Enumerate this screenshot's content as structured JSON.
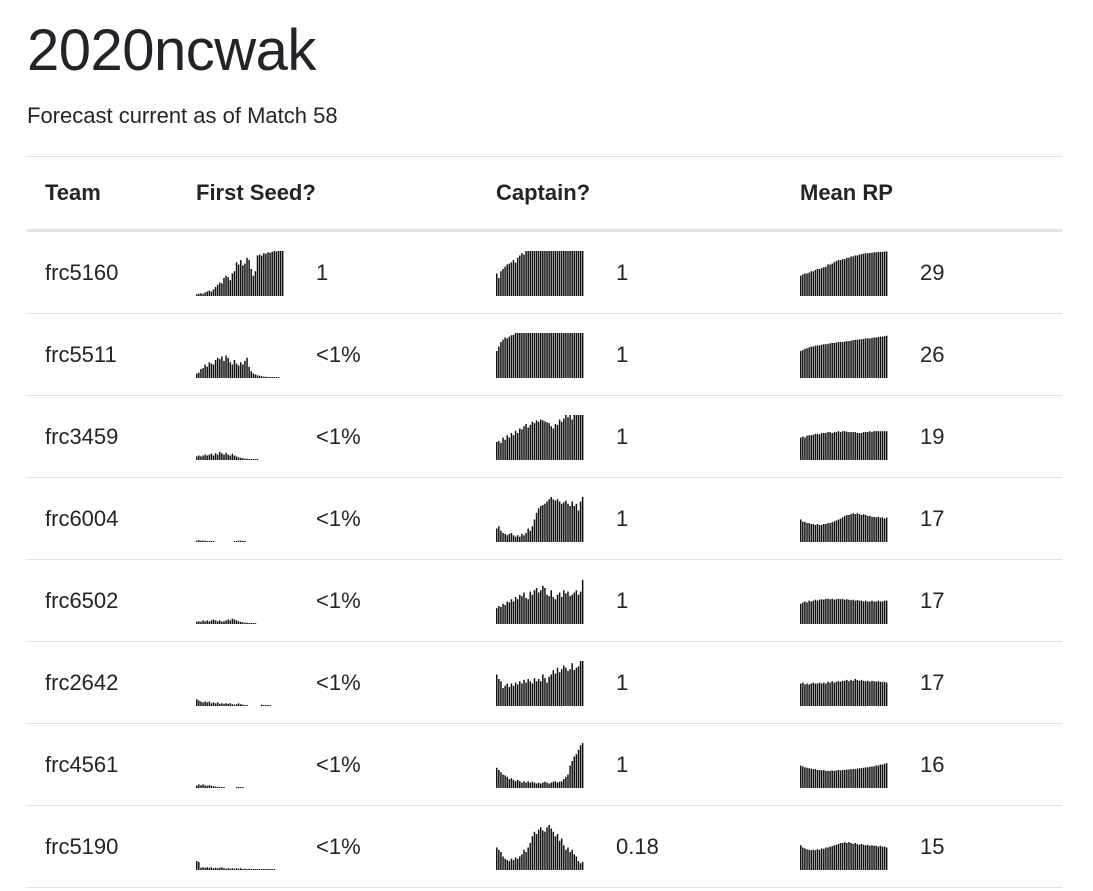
{
  "page": {
    "title": "2020ncwak",
    "subtitle": "Forecast current as of Match 58"
  },
  "table": {
    "headers": {
      "team": "Team",
      "first_seed": "First Seed?",
      "captain": "Captain?",
      "mean_rp": "Mean RP"
    },
    "rows": [
      {
        "team": "frc5160",
        "first_seed": "1",
        "captain": "1",
        "mean_rp": "29",
        "first_seed_spark": [
          0.04,
          0.05,
          0.06,
          0.05,
          0.08,
          0.1,
          0.12,
          0.1,
          0.15,
          0.2,
          0.25,
          0.3,
          0.28,
          0.4,
          0.45,
          0.42,
          0.35,
          0.5,
          0.55,
          0.75,
          0.7,
          0.8,
          0.68,
          0.72,
          0.85,
          0.8,
          0.6,
          0.45,
          0.55,
          0.9,
          0.92,
          0.9,
          0.95,
          0.94,
          0.97,
          0.96,
          0.98,
          1,
          0.99,
          1,
          1,
          1
        ],
        "captain_spark": [
          0.5,
          0.4,
          0.55,
          0.6,
          0.65,
          0.7,
          0.72,
          0.75,
          0.8,
          0.74,
          0.85,
          0.9,
          0.95,
          0.92,
          1,
          1,
          1,
          1,
          1,
          1,
          1,
          1,
          1,
          1,
          1,
          1,
          1,
          1,
          1,
          1,
          1,
          1,
          1,
          1,
          1,
          1,
          1,
          1,
          1,
          1,
          1,
          1
        ],
        "mean_rp_spark": [
          0.45,
          0.48,
          0.5,
          0.5,
          0.52,
          0.55,
          0.55,
          0.58,
          0.6,
          0.6,
          0.62,
          0.64,
          0.65,
          0.7,
          0.7,
          0.72,
          0.75,
          0.78,
          0.8,
          0.8,
          0.82,
          0.82,
          0.85,
          0.85,
          0.88,
          0.88,
          0.9,
          0.9,
          0.92,
          0.93,
          0.94,
          0.95,
          0.95,
          0.96,
          0.96,
          0.97,
          0.97,
          0.98,
          0.98,
          0.98,
          0.99,
          0.99
        ]
      },
      {
        "team": "frc5511",
        "first_seed": "<1%",
        "captain": "1",
        "mean_rp": "26",
        "first_seed_spark": [
          0.1,
          0.12,
          0.2,
          0.22,
          0.3,
          0.25,
          0.35,
          0.32,
          0.3,
          0.4,
          0.45,
          0.42,
          0.48,
          0.38,
          0.5,
          0.45,
          0.35,
          0.3,
          0.4,
          0.32,
          0.28,
          0.35,
          0.3,
          0.38,
          0.45,
          0.25,
          0.15,
          0.1,
          0.08,
          0.06,
          0.05,
          0.04,
          0.03,
          0.03,
          0.02,
          0.02,
          0.02,
          0.02,
          0.01,
          0.01
        ],
        "captain_spark": [
          0.6,
          0.7,
          0.8,
          0.85,
          0.9,
          0.88,
          0.92,
          0.95,
          0.96,
          1,
          1,
          1,
          1,
          1,
          1,
          1,
          1,
          1,
          1,
          1,
          1,
          1,
          1,
          1,
          1,
          1,
          1,
          1,
          1,
          1,
          1,
          1,
          1,
          1,
          1,
          1,
          1,
          1,
          1,
          1,
          1,
          1
        ],
        "mean_rp_spark": [
          0.6,
          0.62,
          0.65,
          0.66,
          0.68,
          0.7,
          0.7,
          0.72,
          0.72,
          0.73,
          0.74,
          0.75,
          0.75,
          0.76,
          0.77,
          0.78,
          0.78,
          0.79,
          0.8,
          0.8,
          0.8,
          0.81,
          0.82,
          0.82,
          0.83,
          0.84,
          0.85,
          0.85,
          0.86,
          0.86,
          0.87,
          0.88,
          0.88,
          0.88,
          0.89,
          0.9,
          0.9,
          0.91,
          0.92,
          0.92,
          0.93,
          0.94
        ]
      },
      {
        "team": "frc3459",
        "first_seed": "<1%",
        "captain": "1",
        "mean_rp": "19",
        "first_seed_spark": [
          0.08,
          0.1,
          0.08,
          0.1,
          0.12,
          0.1,
          0.12,
          0.14,
          0.1,
          0.15,
          0.12,
          0.18,
          0.15,
          0.12,
          0.16,
          0.12,
          0.1,
          0.14,
          0.1,
          0.08,
          0.06,
          0.05,
          0.04,
          0.03,
          0.03,
          0.02,
          0.02,
          0.02,
          0.01,
          0.01
        ],
        "captain_spark": [
          0.4,
          0.42,
          0.38,
          0.5,
          0.45,
          0.55,
          0.5,
          0.6,
          0.55,
          0.65,
          0.6,
          0.7,
          0.68,
          0.75,
          0.8,
          0.72,
          0.78,
          0.85,
          0.82,
          0.88,
          0.85,
          0.9,
          0.88,
          0.86,
          0.84,
          0.82,
          0.75,
          0.7,
          0.8,
          0.78,
          0.9,
          0.85,
          0.92,
          1,
          0.95,
          1,
          0.9,
          1,
          1,
          1,
          1,
          1
        ],
        "mean_rp_spark": [
          0.5,
          0.52,
          0.5,
          0.54,
          0.55,
          0.55,
          0.56,
          0.58,
          0.58,
          0.57,
          0.6,
          0.6,
          0.6,
          0.62,
          0.62,
          0.6,
          0.62,
          0.62,
          0.64,
          0.62,
          0.64,
          0.64,
          0.63,
          0.62,
          0.62,
          0.62,
          0.62,
          0.6,
          0.6,
          0.6,
          0.62,
          0.62,
          0.62,
          0.64,
          0.62,
          0.64,
          0.64,
          0.64,
          0.64,
          0.64,
          0.64,
          0.64
        ]
      },
      {
        "team": "frc6004",
        "first_seed": "<1%",
        "captain": "1",
        "mean_rp": "17",
        "first_seed_spark": [
          0.03,
          0.04,
          0.03,
          0.03,
          0.03,
          0.02,
          0.02,
          0.02,
          0.02,
          0,
          0,
          0,
          0,
          0,
          0,
          0,
          0,
          0,
          0.02,
          0.02,
          0.03,
          0.03,
          0.02,
          0.02
        ],
        "captain_spark": [
          0.3,
          0.35,
          0.25,
          0.2,
          0.18,
          0.15,
          0.18,
          0.2,
          0.15,
          0.12,
          0.15,
          0.12,
          0.18,
          0.15,
          0.2,
          0.3,
          0.25,
          0.35,
          0.5,
          0.65,
          0.75,
          0.8,
          0.82,
          0.85,
          0.9,
          0.95,
          1,
          0.95,
          0.92,
          0.95,
          0.9,
          0.85,
          0.88,
          0.92,
          0.85,
          0.8,
          0.9,
          0.8,
          0.85,
          0.7,
          0.9,
          1
        ],
        "mean_rp_spark": [
          0.5,
          0.45,
          0.45,
          0.42,
          0.42,
          0.4,
          0.4,
          0.38,
          0.4,
          0.38,
          0.38,
          0.4,
          0.4,
          0.42,
          0.42,
          0.44,
          0.46,
          0.48,
          0.5,
          0.52,
          0.55,
          0.58,
          0.6,
          0.6,
          0.62,
          0.64,
          0.62,
          0.64,
          0.62,
          0.6,
          0.62,
          0.6,
          0.58,
          0.58,
          0.56,
          0.56,
          0.55,
          0.56,
          0.54,
          0.55,
          0.52,
          0.54
        ]
      },
      {
        "team": "frc6502",
        "first_seed": "<1%",
        "captain": "1",
        "mean_rp": "17",
        "first_seed_spark": [
          0.05,
          0.06,
          0.05,
          0.08,
          0.06,
          0.08,
          0.06,
          0.08,
          0.1,
          0.08,
          0.06,
          0.08,
          0.05,
          0.06,
          0.08,
          0.1,
          0.08,
          0.12,
          0.1,
          0.08,
          0.06,
          0.05,
          0.04,
          0.03,
          0.03,
          0.02,
          0.02,
          0.02,
          0.01
        ],
        "captain_spark": [
          0.35,
          0.4,
          0.38,
          0.45,
          0.42,
          0.5,
          0.48,
          0.55,
          0.5,
          0.6,
          0.55,
          0.65,
          0.62,
          0.7,
          0.58,
          0.55,
          0.72,
          0.65,
          0.75,
          0.8,
          0.7,
          0.75,
          0.85,
          0.8,
          0.65,
          0.62,
          0.75,
          0.6,
          0.55,
          0.65,
          0.7,
          0.6,
          0.75,
          0.68,
          0.72,
          0.62,
          0.65,
          0.7,
          0.75,
          0.65,
          0.72,
          0.98
        ],
        "mean_rp_spark": [
          0.45,
          0.48,
          0.5,
          0.48,
          0.52,
          0.5,
          0.52,
          0.54,
          0.52,
          0.54,
          0.55,
          0.54,
          0.56,
          0.56,
          0.55,
          0.56,
          0.54,
          0.55,
          0.56,
          0.55,
          0.56,
          0.54,
          0.55,
          0.54,
          0.53,
          0.54,
          0.52,
          0.53,
          0.52,
          0.52,
          0.5,
          0.52,
          0.5,
          0.5,
          0.52,
          0.5,
          0.5,
          0.52,
          0.5,
          0.5,
          0.52,
          0.52
        ]
      },
      {
        "team": "frc2642",
        "first_seed": "<1%",
        "captain": "1",
        "mean_rp": "17",
        "first_seed_spark": [
          0.15,
          0.12,
          0.1,
          0.08,
          0.1,
          0.08,
          0.1,
          0.06,
          0.08,
          0.06,
          0.08,
          0.05,
          0.06,
          0.05,
          0.06,
          0.05,
          0.06,
          0.04,
          0.03,
          0.04,
          0.06,
          0.04,
          0.03,
          0.02,
          0.02,
          0,
          0,
          0,
          0,
          0,
          0,
          0.03,
          0.02,
          0.02,
          0.02,
          0.02
        ],
        "captain_spark": [
          0.7,
          0.6,
          0.55,
          0.4,
          0.45,
          0.5,
          0.42,
          0.5,
          0.45,
          0.52,
          0.48,
          0.55,
          0.5,
          0.58,
          0.52,
          0.6,
          0.55,
          0.5,
          0.62,
          0.55,
          0.6,
          0.55,
          0.7,
          0.62,
          0.52,
          0.65,
          0.7,
          0.8,
          0.72,
          0.85,
          0.75,
          0.82,
          0.9,
          0.85,
          0.78,
          0.82,
          0.95,
          0.8,
          0.85,
          0.88,
          1,
          1
        ],
        "mean_rp_spark": [
          0.5,
          0.52,
          0.48,
          0.5,
          0.48,
          0.5,
          0.52,
          0.5,
          0.5,
          0.52,
          0.5,
          0.52,
          0.5,
          0.54,
          0.52,
          0.55,
          0.52,
          0.54,
          0.55,
          0.54,
          0.56,
          0.56,
          0.58,
          0.55,
          0.58,
          0.56,
          0.6,
          0.58,
          0.56,
          0.58,
          0.56,
          0.55,
          0.56,
          0.54,
          0.56,
          0.55,
          0.54,
          0.55,
          0.54,
          0.53,
          0.54,
          0.52
        ]
      },
      {
        "team": "frc4561",
        "first_seed": "<1%",
        "captain": "1",
        "mean_rp": "16",
        "first_seed_spark": [
          0.06,
          0.08,
          0.06,
          0.08,
          0.06,
          0.05,
          0.06,
          0.05,
          0.04,
          0.03,
          0.03,
          0.02,
          0.02,
          0.02,
          0,
          0,
          0,
          0,
          0,
          0.02,
          0.02,
          0.02,
          0.02
        ],
        "captain_spark": [
          0.45,
          0.4,
          0.35,
          0.3,
          0.28,
          0.25,
          0.2,
          0.22,
          0.18,
          0.15,
          0.18,
          0.15,
          0.12,
          0.15,
          0.12,
          0.15,
          0.12,
          0.14,
          0.12,
          0.1,
          0.12,
          0.1,
          0.12,
          0.14,
          0.12,
          0.1,
          0.12,
          0.14,
          0.15,
          0.12,
          0.14,
          0.15,
          0.2,
          0.25,
          0.3,
          0.5,
          0.6,
          0.7,
          0.75,
          0.85,
          0.95,
          1
        ],
        "mean_rp_spark": [
          0.5,
          0.48,
          0.46,
          0.45,
          0.44,
          0.43,
          0.42,
          0.42,
          0.4,
          0.4,
          0.39,
          0.4,
          0.38,
          0.38,
          0.38,
          0.39,
          0.38,
          0.39,
          0.4,
          0.39,
          0.4,
          0.4,
          0.41,
          0.41,
          0.42,
          0.42,
          0.42,
          0.43,
          0.44,
          0.44,
          0.45,
          0.46,
          0.46,
          0.47,
          0.48,
          0.48,
          0.5,
          0.5,
          0.52,
          0.52,
          0.54,
          0.55
        ]
      },
      {
        "team": "frc5190",
        "first_seed": "<1%",
        "captain": "0.18",
        "mean_rp": "15",
        "first_seed_spark": [
          0.2,
          0.18,
          0.05,
          0.06,
          0.05,
          0.06,
          0.05,
          0.06,
          0.04,
          0.05,
          0.04,
          0.05,
          0.06,
          0.04,
          0.03,
          0.04,
          0.03,
          0.04,
          0.03,
          0.04,
          0.03,
          0.04,
          0.02,
          0.03,
          0.02,
          0.03,
          0.02,
          0.02,
          0.02,
          0.02,
          0.02,
          0.02,
          0.02,
          0.02,
          0.02,
          0.02,
          0.02,
          0.02
        ],
        "captain_spark": [
          0.5,
          0.45,
          0.4,
          0.3,
          0.25,
          0.22,
          0.2,
          0.25,
          0.22,
          0.28,
          0.25,
          0.3,
          0.35,
          0.45,
          0.4,
          0.5,
          0.6,
          0.75,
          0.85,
          0.8,
          0.9,
          0.95,
          0.88,
          0.85,
          0.95,
          1,
          0.92,
          0.85,
          0.75,
          0.8,
          0.65,
          0.7,
          0.55,
          0.45,
          0.5,
          0.4,
          0.45,
          0.35,
          0.3,
          0.2,
          0.15,
          0.18
        ],
        "mean_rp_spark": [
          0.55,
          0.5,
          0.48,
          0.46,
          0.45,
          0.44,
          0.45,
          0.44,
          0.46,
          0.45,
          0.48,
          0.47,
          0.5,
          0.5,
          0.52,
          0.53,
          0.55,
          0.56,
          0.58,
          0.6,
          0.6,
          0.62,
          0.6,
          0.62,
          0.6,
          0.58,
          0.6,
          0.58,
          0.56,
          0.58,
          0.56,
          0.55,
          0.56,
          0.54,
          0.55,
          0.54,
          0.54,
          0.52,
          0.54,
          0.52,
          0.52,
          0.5
        ]
      }
    ]
  }
}
